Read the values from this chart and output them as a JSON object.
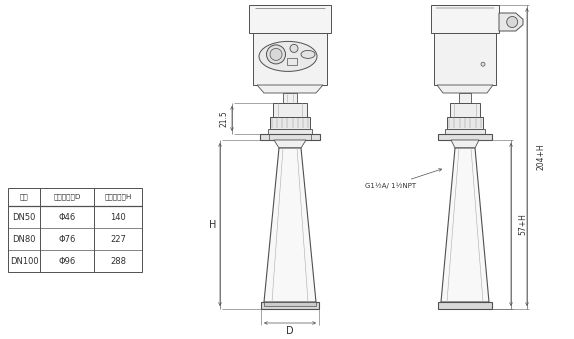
{
  "bg_color": "#ffffff",
  "line_color": "#505050",
  "line_color_dim": "#606060",
  "table_header": [
    "法兰",
    "喇叭口直径D",
    "喇叭口高度H"
  ],
  "table_rows": [
    [
      "DN50",
      "Φ46",
      "140"
    ],
    [
      "DN80",
      "Φ76",
      "227"
    ],
    [
      "DN100",
      "Φ96",
      "288"
    ]
  ],
  "dim_21_5": "21.5",
  "dim_H": "H",
  "dim_D": "D",
  "dim_204H": "204+H",
  "dim_57H": "57+H",
  "dim_thread": "G1½A/ 1½NPT"
}
